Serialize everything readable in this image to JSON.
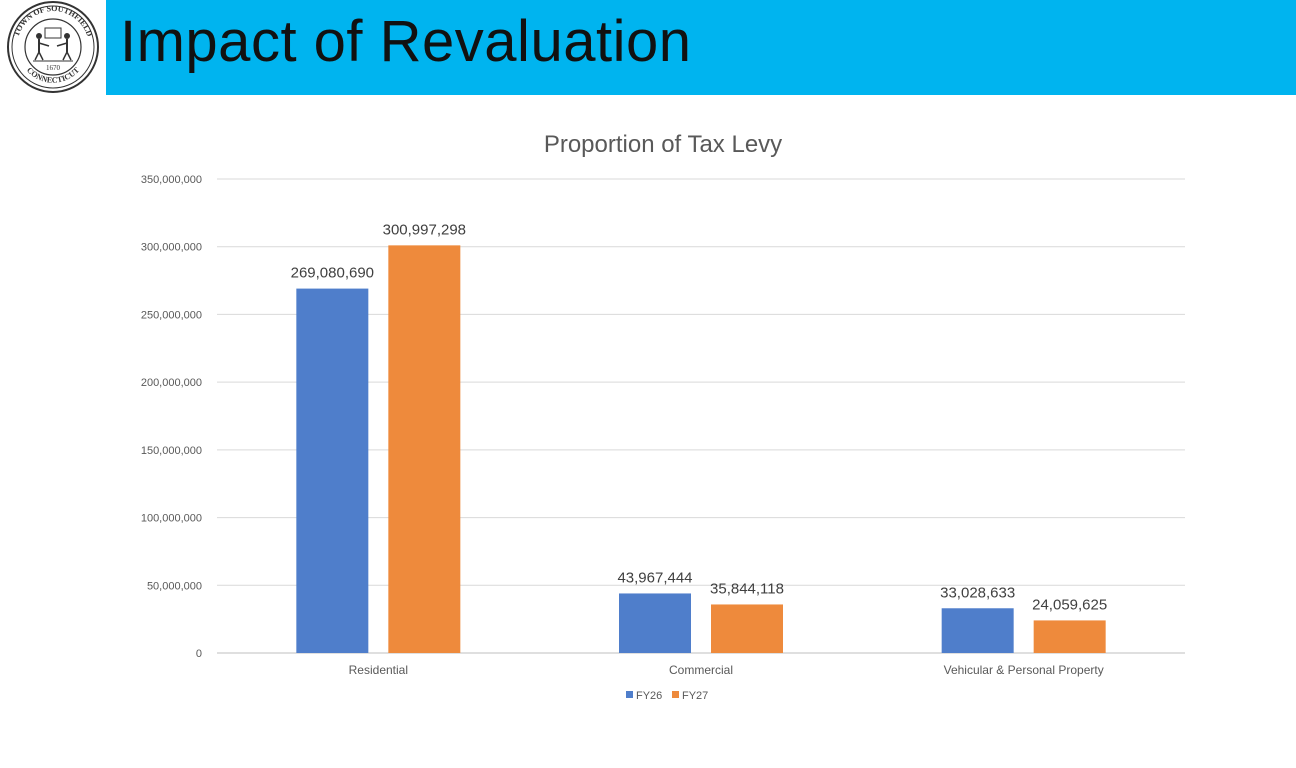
{
  "header": {
    "title": "Impact of Revaluation",
    "seal_top_text": "TOWN OF SOUTHFIELD",
    "seal_bottom_text": "CONNECTICUT",
    "seal_year": "1670"
  },
  "colors": {
    "header_bg": "#00b4ef",
    "series_fy26": "#4f7ecb",
    "series_fy27": "#ee8a3c",
    "grid": "#d9d9d9",
    "axis_text": "#595959"
  },
  "chart_data": {
    "type": "bar",
    "title": "Proportion of Tax Levy",
    "categories": [
      "Residential",
      "Commercial",
      "Vehicular & Personal Property"
    ],
    "series": [
      {
        "name": "FY26",
        "values": [
          269080690,
          43967444,
          33028633
        ],
        "labels": [
          "269,080,690",
          "43,967,444",
          "33,028,633"
        ]
      },
      {
        "name": "FY27",
        "values": [
          300997298,
          35844118,
          24059625
        ],
        "labels": [
          "300,997,298",
          "35,844,118",
          "24,059,625"
        ]
      }
    ],
    "ylim": [
      0,
      350000000
    ],
    "yticks": [
      0,
      50000000,
      100000000,
      150000000,
      200000000,
      250000000,
      300000000,
      350000000
    ],
    "ytick_labels": [
      "0",
      "50,000,000",
      "100,000,000",
      "150,000,000",
      "200,000,000",
      "250,000,000",
      "300,000,000",
      "350,000,000"
    ],
    "xlabel": "",
    "ylabel": "",
    "grid": true,
    "legend": "bottom-center"
  }
}
